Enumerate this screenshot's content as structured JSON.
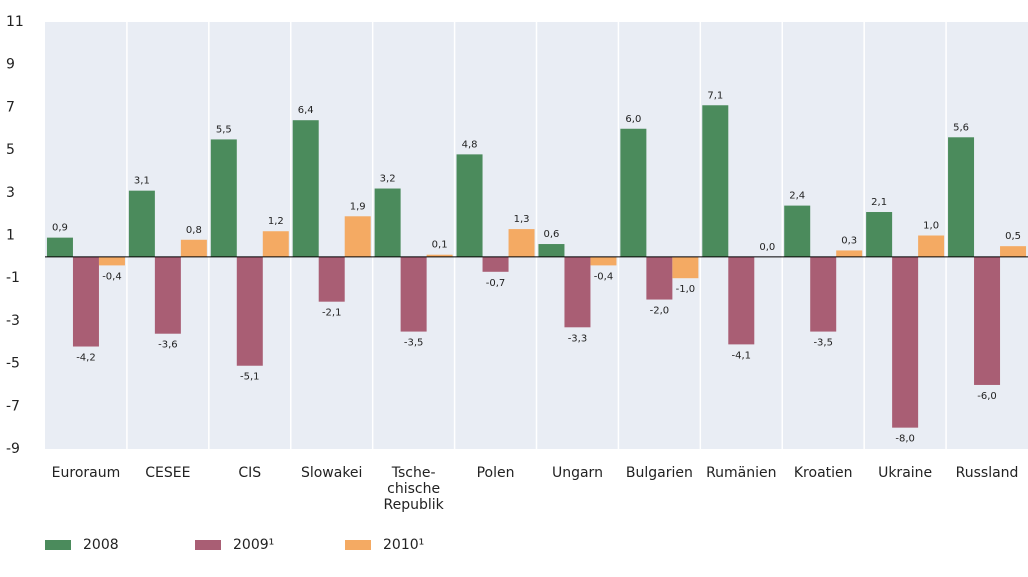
{
  "chart_data": {
    "type": "bar",
    "categories": [
      "Euroraum",
      "CESEE",
      "CIS",
      "Slowakei",
      "Tsche- chische Republik",
      "Polen",
      "Ungarn",
      "Bulgarien",
      "Rumänien",
      "Kroatien",
      "Ukraine",
      "Russland"
    ],
    "series": [
      {
        "name": "2008",
        "color": "#4b8b5c",
        "values": [
          0.9,
          3.1,
          5.5,
          6.4,
          3.2,
          4.8,
          0.6,
          6.0,
          7.1,
          2.4,
          2.1,
          5.6
        ],
        "value_labels": [
          "0,9",
          "3,1",
          "5,5",
          "6,4",
          "3,2",
          "4,8",
          "0,6",
          "6,0",
          "7,1",
          "2,4",
          "2,1",
          "5,6"
        ]
      },
      {
        "name": "2009¹",
        "color": "#a95e74",
        "values": [
          -4.2,
          -3.6,
          -5.1,
          -2.1,
          -3.5,
          -0.7,
          -3.3,
          -2.0,
          -4.1,
          -3.5,
          -8.0,
          -6.0
        ],
        "value_labels": [
          "-4,2",
          "-3,6",
          "-5,1",
          "-2,1",
          "-3,5",
          "-0,7",
          "-3,3",
          "-2,0",
          "-4,1",
          "-3,5",
          "-8,0",
          "-6,0"
        ]
      },
      {
        "name": "2010¹",
        "color": "#f4aa63",
        "values": [
          -0.4,
          0.8,
          1.2,
          1.9,
          0.1,
          1.3,
          -0.4,
          -1.0,
          0.0,
          0.3,
          1.0,
          0.5
        ],
        "value_labels": [
          "-0,4",
          "0,8",
          "1,2",
          "1,9",
          "0,1",
          "1,3",
          "-0,4",
          "-1,0",
          "0,0",
          "0,3",
          "1,0",
          "0,5"
        ]
      }
    ],
    "ylim": [
      -9,
      11
    ],
    "yticks": [
      11,
      9,
      7,
      5,
      3,
      1,
      -1,
      -3,
      -5,
      -7,
      -9
    ]
  }
}
